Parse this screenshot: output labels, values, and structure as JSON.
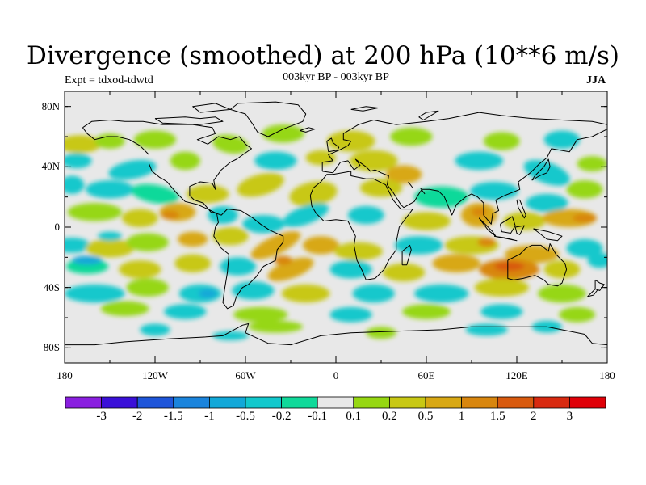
{
  "title": "Divergence (smoothed) at 200 hPa (10**6 m/s)",
  "experiment": "Expt = tdxod-tdwtd",
  "period": "003kyr BP - 003kyr BP",
  "season": "JJA",
  "lat_ticks": [
    "80N",
    "40N",
    "0",
    "40S",
    "80S"
  ],
  "lon_ticks": [
    "180",
    "120W",
    "60W",
    "0",
    "60E",
    "120E",
    "180"
  ],
  "colorbar": {
    "labels": [
      "-3",
      "-2",
      "-1.5",
      "-1",
      "-0.5",
      "-0.2",
      "-0.1",
      "0.1",
      "0.2",
      "0.5",
      "1",
      "1.5",
      "2",
      "3"
    ],
    "colors": [
      "#8a1fe0",
      "#3a10d8",
      "#1e55d9",
      "#1a84dc",
      "#12a8d8",
      "#12c8cc",
      "#10d99a",
      "#e8e8e8",
      "#96d712",
      "#c8c814",
      "#d8a814",
      "#d8860e",
      "#d85a0e",
      "#d82a10",
      "#e00008"
    ]
  },
  "colors": {
    "ocean_background": "#e8e8e8",
    "coastline": "#000000"
  }
}
